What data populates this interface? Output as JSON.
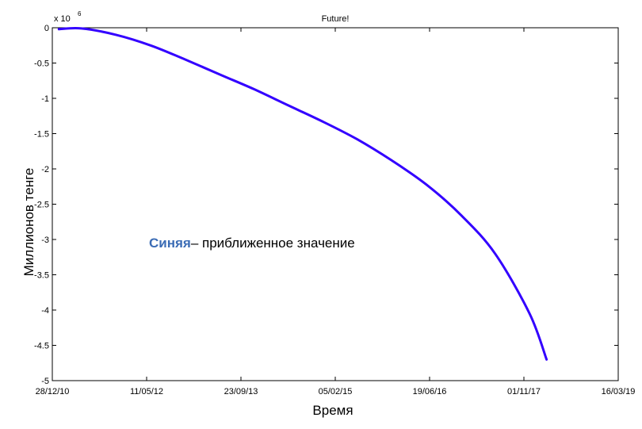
{
  "chart_data": {
    "type": "line",
    "title": "Future!",
    "xlabel": "Время",
    "ylabel": "Миллионов тенге",
    "y_multiplier": "x 10",
    "y_exponent": "6",
    "x_ticks": [
      "28/12/10",
      "11/05/12",
      "23/09/13",
      "05/02/15",
      "19/06/16",
      "01/11/17",
      "16/03/19"
    ],
    "y_ticks": [
      "0",
      "-0.5",
      "-1",
      "-1.5",
      "-2",
      "-2.5",
      "-3",
      "-3.5",
      "-4",
      "-4.5",
      "-5"
    ],
    "xlim": [
      "2010-12-28",
      "2019-03-16"
    ],
    "ylim": [
      -5,
      0
    ],
    "grid": false,
    "series": [
      {
        "color": "#3300ff",
        "x": [
          "2011-02-01",
          "2011-06-01",
          "2011-12-01",
          "2012-06-01",
          "2012-12-01",
          "2013-06-01",
          "2013-12-01",
          "2014-06-01",
          "2014-12-01",
          "2015-06-01",
          "2015-12-01",
          "2016-06-01",
          "2016-12-01",
          "2017-06-01",
          "2017-12-01",
          "2018-03-01"
        ],
        "y": [
          -0.02,
          -0.01,
          -0.1,
          -0.25,
          -0.45,
          -0.66,
          -0.87,
          -1.1,
          -1.33,
          -1.58,
          -1.88,
          -2.22,
          -2.65,
          -3.2,
          -4.05,
          -4.7
        ]
      }
    ]
  },
  "annotation": {
    "highlight": "Синяя",
    "rest": "– приближенное значение"
  }
}
